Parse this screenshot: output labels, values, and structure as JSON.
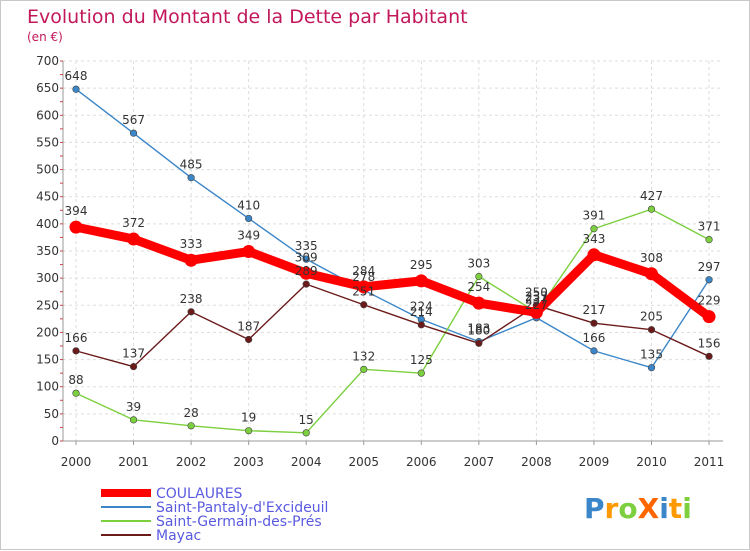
{
  "chart_data": {
    "type": "line",
    "title": "Evolution du Montant de la Dette par Habitant",
    "subtitle": "(en €)",
    "x": [
      "2000",
      "2001",
      "2002",
      "2003",
      "2004",
      "2005",
      "2006",
      "2007",
      "2008",
      "2009",
      "2010",
      "2011"
    ],
    "yticks": [
      0,
      50,
      100,
      150,
      200,
      250,
      300,
      350,
      400,
      450,
      500,
      550,
      600,
      650,
      700
    ],
    "ylim": [
      0,
      700
    ],
    "grid": true,
    "legend_position": "bottom-left",
    "series": [
      {
        "name": "COULAURES",
        "color": "#ff0000",
        "values": [
          394,
          372,
          333,
          349,
          309,
          284,
          295,
          254,
          237,
          343,
          308,
          229
        ]
      },
      {
        "name": "Saint-Pantaly-d'Excideuil",
        "color": "#3a86c8",
        "values": [
          648,
          567,
          485,
          410,
          335,
          278,
          224,
          183,
          227,
          166,
          135,
          297
        ]
      },
      {
        "name": "Saint-Germain-des-Prés",
        "color": "#7ccf3e",
        "values": [
          88,
          39,
          28,
          19,
          15,
          132,
          125,
          303,
          237,
          391,
          427,
          371
        ]
      },
      {
        "name": "Mayac",
        "color": "#6b1a1a",
        "values": [
          166,
          137,
          238,
          187,
          289,
          251,
          214,
          180,
          250,
          217,
          205,
          156
        ]
      }
    ]
  },
  "brand": {
    "text": "ProXiti"
  }
}
